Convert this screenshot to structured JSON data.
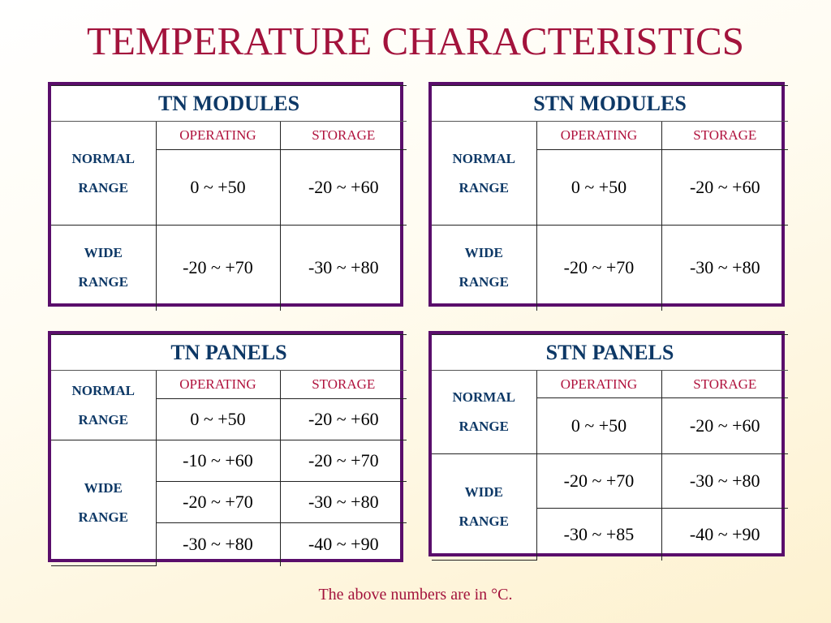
{
  "title": "TEMPERATURE CHARACTERISTICS",
  "colors": {
    "title": "#a3133c",
    "border": "#5a0e6b",
    "heading": "#0d3866",
    "column_header": "#b0123d"
  },
  "tables": [
    {
      "title": "TN  MODULES",
      "headers": [
        "OPERATING",
        "STORAGE"
      ],
      "rows": [
        {
          "label": [
            "NORMAL",
            "RANGE"
          ],
          "values": [
            [
              "0 ~ +50",
              "-20 ~ +60"
            ]
          ]
        },
        {
          "label": [
            "WIDE",
            "RANGE"
          ],
          "values": [
            [
              "-20 ~ +70",
              "-30 ~ +80"
            ]
          ]
        }
      ]
    },
    {
      "title": "STN  MODULES",
      "headers": [
        "OPERATING",
        "STORAGE"
      ],
      "rows": [
        {
          "label": [
            "NORMAL",
            "RANGE"
          ],
          "values": [
            [
              "0 ~ +50",
              "-20 ~ +60"
            ]
          ]
        },
        {
          "label": [
            "WIDE",
            "RANGE"
          ],
          "values": [
            [
              "-20 ~ +70",
              "-30 ~ +80"
            ]
          ]
        }
      ]
    },
    {
      "title": "TN  PANELS",
      "headers": [
        "OPERATING",
        "STORAGE"
      ],
      "rows": [
        {
          "label": [
            "NORMAL",
            "RANGE"
          ],
          "values": [
            [
              "0 ~ +50",
              "-20 ~ +60"
            ]
          ]
        },
        {
          "label": [
            "WIDE",
            "RANGE"
          ],
          "values": [
            [
              "-10 ~ +60",
              "-20 ~ +70"
            ],
            [
              "-20 ~ +70",
              "-30 ~ +80"
            ],
            [
              "-30 ~ +80",
              "-40 ~ +90"
            ]
          ]
        }
      ]
    },
    {
      "title": "STN  PANELS",
      "headers": [
        "OPERATING",
        "STORAGE"
      ],
      "rows": [
        {
          "label": [
            "NORMAL",
            "RANGE"
          ],
          "values": [
            [
              "0 ~ +50",
              "-20 ~ +60"
            ]
          ]
        },
        {
          "label": [
            "WIDE",
            "RANGE"
          ],
          "values": [
            [
              "-20 ~ +70",
              "-30 ~ +80"
            ],
            [
              "-30 ~ +85",
              "-40 ~ +90"
            ]
          ]
        }
      ]
    }
  ],
  "footnote": "The above numbers are in °C."
}
